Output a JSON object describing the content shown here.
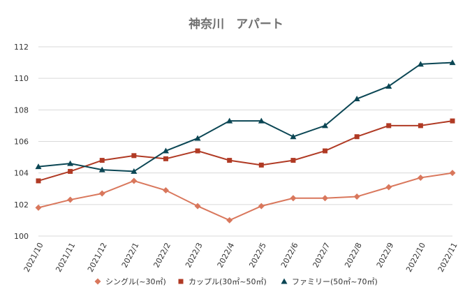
{
  "chart_data": {
    "type": "line",
    "title": "神奈川　アパート",
    "categories": [
      "2021/10",
      "2021/11",
      "2021/12",
      "2022/1",
      "2022/2",
      "2022/3",
      "2022/4",
      "2022/5",
      "2022/6",
      "2022/7",
      "2022/8",
      "2022/9",
      "2022/10",
      "2022/11"
    ],
    "ylim": [
      100,
      112
    ],
    "yticks": [
      100,
      102,
      104,
      106,
      108,
      110,
      112
    ],
    "grid": true,
    "legend_position": "bottom",
    "series": [
      {
        "name": "シングル(~30㎡)",
        "marker": "diamond",
        "color": "#d9775c",
        "values": [
          101.8,
          102.3,
          102.7,
          103.5,
          102.9,
          101.9,
          101.0,
          101.9,
          102.4,
          102.4,
          102.5,
          103.1,
          103.7,
          104.0
        ]
      },
      {
        "name": "カップル(30㎡~50㎡)",
        "marker": "square",
        "color": "#b03a24",
        "values": [
          103.5,
          104.1,
          104.8,
          105.1,
          104.9,
          105.4,
          104.8,
          104.5,
          104.8,
          105.4,
          106.3,
          107.0,
          107.0,
          107.3
        ]
      },
      {
        "name": "ファミリー(50㎡~70㎡)",
        "marker": "triangle",
        "color": "#0b4654",
        "values": [
          104.4,
          104.6,
          104.2,
          104.1,
          105.4,
          106.2,
          107.3,
          107.3,
          106.3,
          107.0,
          108.7,
          109.5,
          110.9,
          111.0
        ]
      }
    ]
  }
}
